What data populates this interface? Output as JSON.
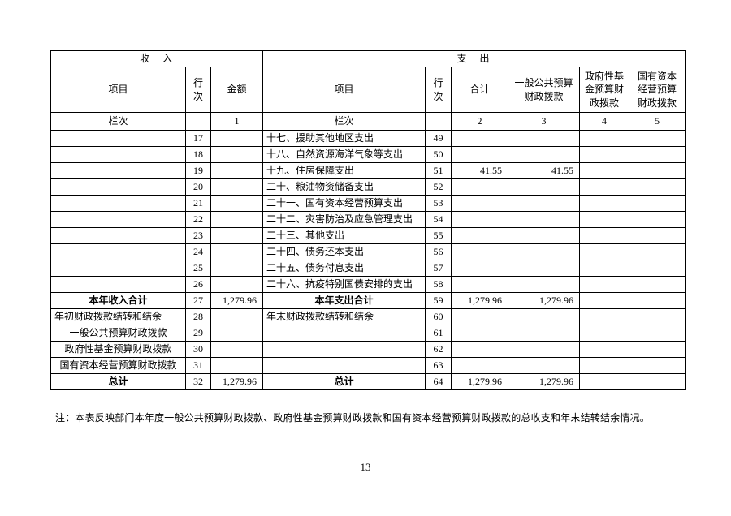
{
  "page": {
    "note": "注：本表反映部门本年度一般公共预算财政拨款、政府性基金预算财政拨款和国有资本经营预算财政拨款的总收支和年末结转结余情况。",
    "number": "13"
  },
  "table": {
    "income_header": "收　入",
    "expense_header": "支　出",
    "columns": {
      "income_item": "项目",
      "income_line": "行次",
      "income_amount": "金额",
      "expense_item": "项目",
      "expense_line": "行次",
      "expense_total": "合计",
      "expense_general": "一般公共预算财政拨款",
      "expense_govfund": "政府性基金预算财政拨款",
      "expense_stateowned": "国有资本经营预算财政拨款"
    },
    "index_row": [
      "栏次",
      "",
      "1",
      "栏次",
      "",
      "2",
      "3",
      "4",
      "5"
    ],
    "rows": [
      {
        "in": [
          "",
          "17",
          ""
        ],
        "ex": [
          "十七、援助其他地区支出",
          "49",
          "",
          "",
          "",
          ""
        ]
      },
      {
        "in": [
          "",
          "18",
          ""
        ],
        "ex": [
          "十八、自然资源海洋气象等支出",
          "50",
          "",
          "",
          "",
          ""
        ]
      },
      {
        "in": [
          "",
          "19",
          ""
        ],
        "ex": [
          "十九、住房保障支出",
          "51",
          "41.55",
          "41.55",
          "",
          ""
        ]
      },
      {
        "in": [
          "",
          "20",
          ""
        ],
        "ex": [
          "二十、粮油物资储备支出",
          "52",
          "",
          "",
          "",
          ""
        ]
      },
      {
        "in": [
          "",
          "21",
          ""
        ],
        "ex": [
          "二十一、国有资本经营预算支出",
          "53",
          "",
          "",
          "",
          ""
        ]
      },
      {
        "in": [
          "",
          "22",
          ""
        ],
        "ex": [
          "二十二、灾害防治及应急管理支出",
          "54",
          "",
          "",
          "",
          ""
        ]
      },
      {
        "in": [
          "",
          "23",
          ""
        ],
        "ex": [
          "二十三、其他支出",
          "55",
          "",
          "",
          "",
          ""
        ]
      },
      {
        "in": [
          "",
          "24",
          ""
        ],
        "ex": [
          "二十四、债务还本支出",
          "56",
          "",
          "",
          "",
          ""
        ]
      },
      {
        "in": [
          "",
          "25",
          ""
        ],
        "ex": [
          "二十五、债务付息支出",
          "57",
          "",
          "",
          "",
          ""
        ]
      },
      {
        "in": [
          "",
          "26",
          ""
        ],
        "ex": [
          "二十六、抗疫特别国债安排的支出",
          "58",
          "",
          "",
          "",
          ""
        ]
      },
      {
        "in": [
          "本年收入合计",
          "27",
          "1,279.96"
        ],
        "ex": [
          "本年支出合计",
          "59",
          "1,279.96",
          "1,279.96",
          "",
          ""
        ],
        "in_align": "center",
        "ex_align": "center",
        "bold": true
      },
      {
        "in": [
          "年初财政拨款结转和结余",
          "28",
          ""
        ],
        "ex": [
          "年末财政拨款结转和结余",
          "60",
          "",
          "",
          "",
          ""
        ]
      },
      {
        "in": [
          "一般公共预算财政拨款",
          "29",
          ""
        ],
        "ex": [
          "",
          "61",
          "",
          "",
          "",
          ""
        ],
        "in_align": "center"
      },
      {
        "in": [
          "政府性基金预算财政拨款",
          "30",
          ""
        ],
        "ex": [
          "",
          "62",
          "",
          "",
          "",
          ""
        ],
        "in_align": "center"
      },
      {
        "in": [
          "国有资本经营预算财政拨款",
          "31",
          ""
        ],
        "ex": [
          "",
          "63",
          "",
          "",
          "",
          ""
        ],
        "in_align": "center"
      },
      {
        "in": [
          "总计",
          "32",
          "1,279.96"
        ],
        "ex": [
          "总计",
          "64",
          "1,279.96",
          "1,279.96",
          "",
          ""
        ],
        "in_align": "center",
        "ex_align": "center",
        "bold": true
      }
    ]
  }
}
